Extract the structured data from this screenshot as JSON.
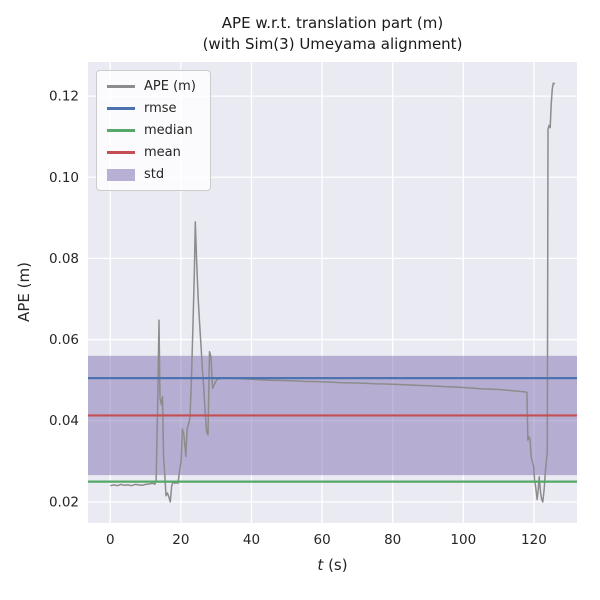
{
  "chart_data": {
    "type": "line",
    "title": "APE w.r.t. translation part (m)",
    "subtitle": "(with Sim(3) Umeyama alignment)",
    "xlabel": "t (s)",
    "xlabel_var": "t",
    "xlabel_unit": " (s)",
    "ylabel": "APE (m)",
    "xlim": [
      -6.3,
      132.2
    ],
    "ylim": [
      0.0148,
      0.1284
    ],
    "xticks": [
      0,
      20,
      40,
      60,
      80,
      100,
      120
    ],
    "yticks": [
      0.02,
      0.04,
      0.06,
      0.08,
      0.1,
      0.12
    ],
    "grid": true,
    "legend_position": "upper-left",
    "stats": {
      "rmse": 0.0505,
      "median": 0.025,
      "mean": 0.0413,
      "std_band": [
        0.0266,
        0.056
      ]
    },
    "legend": [
      {
        "label": "APE (m)",
        "color": "#8c8c8c",
        "kind": "line"
      },
      {
        "label": "rmse",
        "color": "#4c72b0",
        "kind": "line"
      },
      {
        "label": "median",
        "color": "#55a868",
        "kind": "line"
      },
      {
        "label": "mean",
        "color": "#c44e52",
        "kind": "line"
      },
      {
        "label": "std",
        "color": "#8172b2",
        "kind": "patch"
      }
    ],
    "colors": {
      "figure_bg": "#ffffff",
      "plot_bg": "#eaeaf2",
      "grid": "#ffffff",
      "text": "#262626",
      "ape": "#8c8c8c",
      "rmse": "#4c72b0",
      "median": "#55a868",
      "mean": "#c44e52",
      "std": "#8172b2"
    },
    "series": [
      {
        "name": "APE (m)",
        "points": [
          [
            0,
            0.024
          ],
          [
            1,
            0.0242
          ],
          [
            2,
            0.024
          ],
          [
            3,
            0.0243
          ],
          [
            4,
            0.0241
          ],
          [
            5,
            0.0242
          ],
          [
            6,
            0.024
          ],
          [
            7,
            0.0243
          ],
          [
            8,
            0.0242
          ],
          [
            9,
            0.0241
          ],
          [
            10,
            0.0243
          ],
          [
            11,
            0.0244
          ],
          [
            12,
            0.0246
          ],
          [
            12.6,
            0.0243
          ],
          [
            13.0,
            0.0252
          ],
          [
            13.4,
            0.043
          ],
          [
            13.8,
            0.0648
          ],
          [
            14.1,
            0.0455
          ],
          [
            14.5,
            0.044
          ],
          [
            14.8,
            0.046
          ],
          [
            15.1,
            0.031
          ],
          [
            15.5,
            0.0258
          ],
          [
            15.8,
            0.0215
          ],
          [
            16.2,
            0.0222
          ],
          [
            16.6,
            0.0212
          ],
          [
            17.0,
            0.02
          ],
          [
            17.4,
            0.024
          ],
          [
            17.8,
            0.025
          ],
          [
            18.2,
            0.0246
          ],
          [
            18.7,
            0.0247
          ],
          [
            19.2,
            0.0246
          ],
          [
            19.7,
            0.028
          ],
          [
            20.1,
            0.0302
          ],
          [
            20.4,
            0.038
          ],
          [
            20.8,
            0.0368
          ],
          [
            21.1,
            0.0345
          ],
          [
            21.4,
            0.0312
          ],
          [
            21.8,
            0.038
          ],
          [
            22.2,
            0.0392
          ],
          [
            22.6,
            0.0408
          ],
          [
            23.0,
            0.05
          ],
          [
            23.4,
            0.063
          ],
          [
            23.8,
            0.076
          ],
          [
            24.1,
            0.089
          ],
          [
            24.5,
            0.0788
          ],
          [
            24.9,
            0.07
          ],
          [
            25.3,
            0.064
          ],
          [
            25.7,
            0.0585
          ],
          [
            26.1,
            0.0528
          ],
          [
            26.5,
            0.0478
          ],
          [
            26.9,
            0.042
          ],
          [
            27.3,
            0.0372
          ],
          [
            27.7,
            0.0365
          ],
          [
            28.1,
            0.057
          ],
          [
            28.5,
            0.0558
          ],
          [
            29.0,
            0.048
          ],
          [
            29.6,
            0.0492
          ],
          [
            30.2,
            0.0502
          ],
          [
            32,
            0.0505
          ],
          [
            36,
            0.0504
          ],
          [
            40,
            0.0502
          ],
          [
            45,
            0.05
          ],
          [
            50,
            0.0499
          ],
          [
            55,
            0.0497
          ],
          [
            60,
            0.0496
          ],
          [
            65,
            0.0494
          ],
          [
            70,
            0.0493
          ],
          [
            75,
            0.0491
          ],
          [
            80,
            0.049
          ],
          [
            85,
            0.0488
          ],
          [
            90,
            0.0486
          ],
          [
            95,
            0.0484
          ],
          [
            100,
            0.0482
          ],
          [
            105,
            0.0479
          ],
          [
            110,
            0.0477
          ],
          [
            114,
            0.0474
          ],
          [
            117.5,
            0.0471
          ],
          [
            118.0,
            0.047
          ],
          [
            118.3,
            0.0352
          ],
          [
            118.6,
            0.036
          ],
          [
            118.9,
            0.0355
          ],
          [
            119.2,
            0.0312
          ],
          [
            119.5,
            0.03
          ],
          [
            119.9,
            0.0288
          ],
          [
            120.2,
            0.0252
          ],
          [
            120.5,
            0.0236
          ],
          [
            120.9,
            0.0206
          ],
          [
            121.2,
            0.023
          ],
          [
            121.5,
            0.0262
          ],
          [
            121.9,
            0.0222
          ],
          [
            122.2,
            0.0206
          ],
          [
            122.5,
            0.02
          ],
          [
            122.9,
            0.0232
          ],
          [
            123.2,
            0.027
          ],
          [
            123.5,
            0.03
          ],
          [
            123.8,
            0.0322
          ],
          [
            124.0,
            0.1118
          ],
          [
            124.3,
            0.1128
          ],
          [
            124.6,
            0.1122
          ],
          [
            124.9,
            0.118
          ],
          [
            125.2,
            0.1218
          ],
          [
            125.5,
            0.1232
          ],
          [
            125.9,
            0.123
          ]
        ]
      }
    ]
  }
}
